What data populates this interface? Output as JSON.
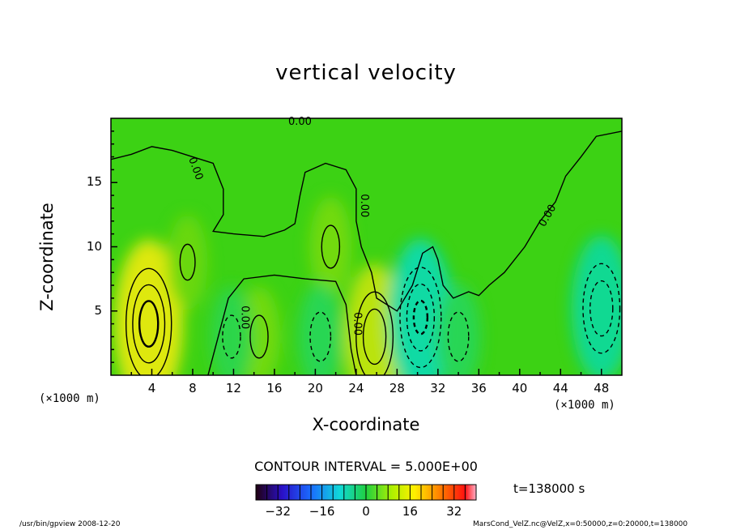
{
  "chart_data": {
    "type": "heatmap",
    "title": "vertical velocity",
    "xlabel": "X-coordinate",
    "ylabel": "Z-coordinate",
    "x_unit_left": "(×1000 m)",
    "x_unit_right": "(×1000 m)",
    "x_ticks": [
      "4",
      "8",
      "12",
      "16",
      "20",
      "24",
      "28",
      "32",
      "36",
      "40",
      "44",
      "48"
    ],
    "y_ticks": [
      "5",
      "10",
      "15"
    ],
    "xlim": [
      0,
      50
    ],
    "ylim": [
      0,
      20
    ],
    "contour_interval_text": "CONTOUR INTERVAL = 5.000E+00",
    "contour_label": "0.00",
    "time_text": "t=138000 s",
    "colorbar": {
      "range": [
        -40,
        40
      ],
      "tick_labels": [
        "−32",
        "−16",
        "0",
        "16",
        "32"
      ],
      "tick_values": [
        -32,
        -16,
        0,
        16,
        32
      ]
    },
    "extrema": [
      {
        "x": 3.7,
        "z": 4.0,
        "value": 18,
        "kind": "updraft"
      },
      {
        "x": 25.8,
        "z": 3.0,
        "value": 14,
        "kind": "updraft"
      },
      {
        "x": 30.3,
        "z": 4.5,
        "value": -16,
        "kind": "downdraft"
      },
      {
        "x": 48.0,
        "z": 5.2,
        "value": -14,
        "kind": "downdraft"
      },
      {
        "x": 21.5,
        "z": 10.0,
        "value": 6,
        "kind": "updraft"
      },
      {
        "x": 7.5,
        "z": 8.8,
        "value": 5,
        "kind": "updraft"
      },
      {
        "x": 14.5,
        "z": 3.0,
        "value": 6,
        "kind": "updraft"
      },
      {
        "x": 20.5,
        "z": 3.0,
        "value": -7,
        "kind": "downdraft"
      },
      {
        "x": 11.8,
        "z": 3.0,
        "value": -6,
        "kind": "downdraft"
      },
      {
        "x": 34.0,
        "z": 3.0,
        "value": -7,
        "kind": "downdraft"
      }
    ]
  },
  "footer": {
    "left_text": "/usr/bin/gpview  2008-12-20",
    "right_text": "MarsCond_VelZ.nc@VelZ,x=0:50000,z=0:20000,t=138000"
  },
  "colors": {
    "background_field": "#3cd214",
    "positive": "#e8f000",
    "negative": "#00d8c8"
  }
}
